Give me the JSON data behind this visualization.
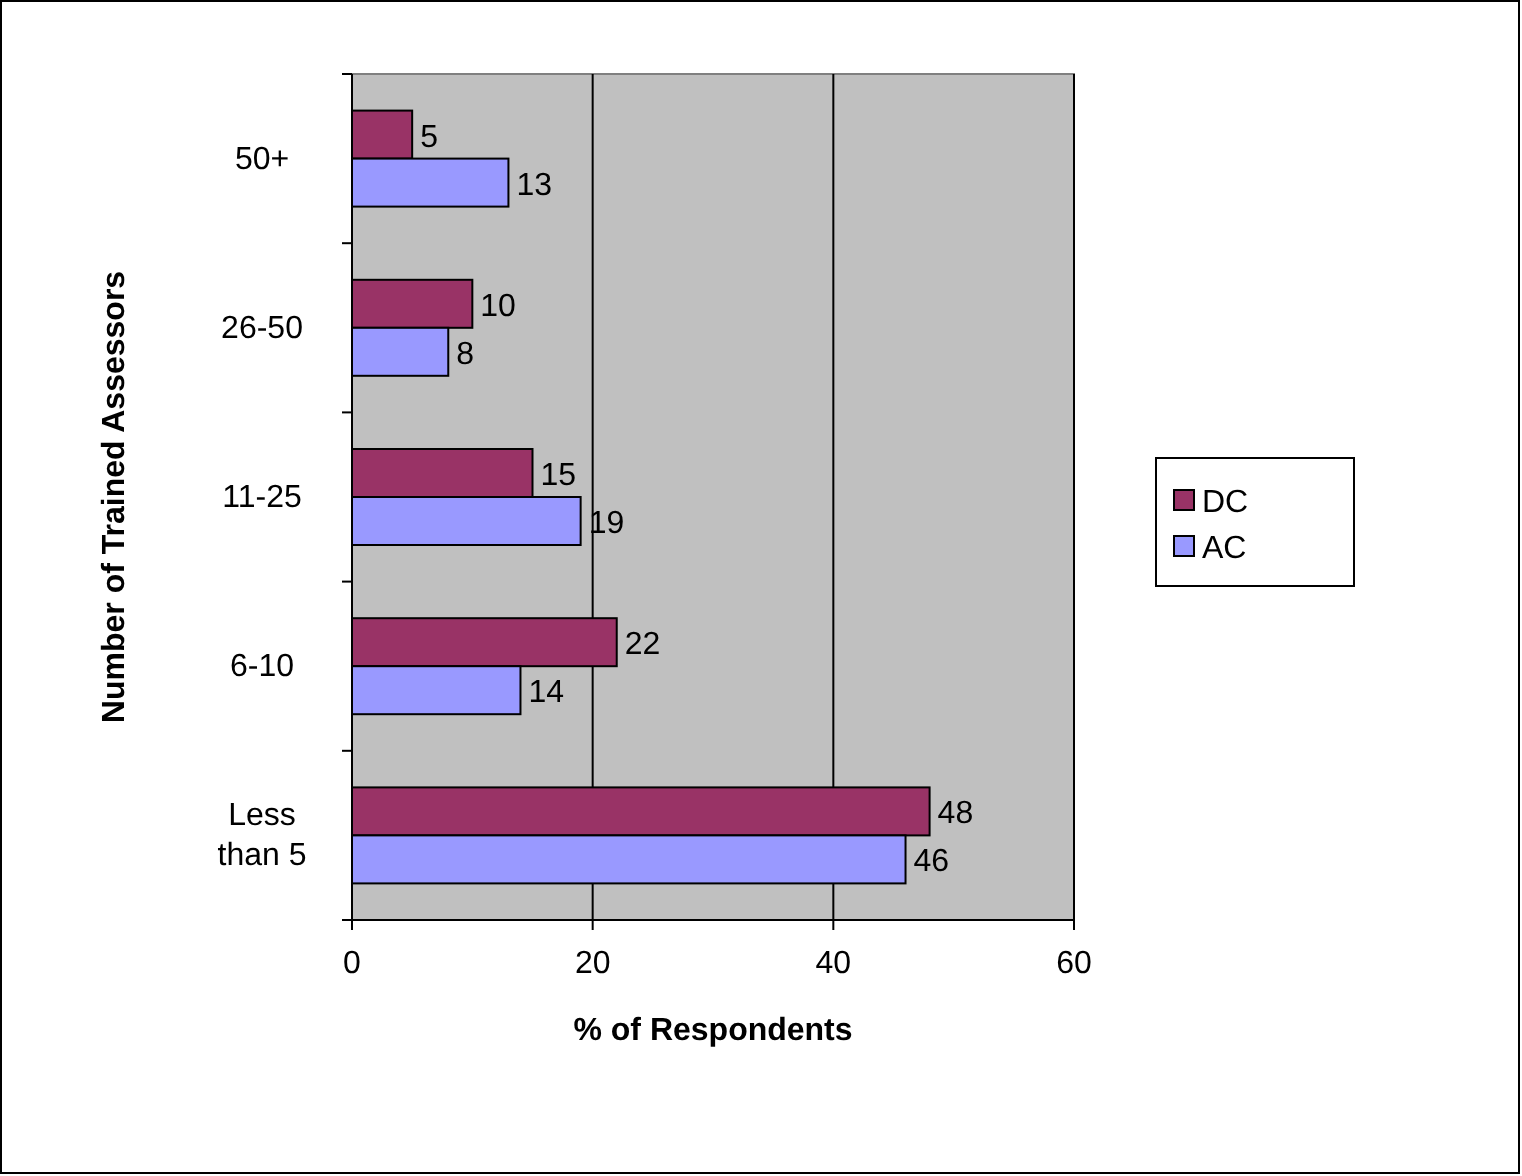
{
  "chart_data": {
    "type": "bar",
    "orientation": "horizontal",
    "xlabel": "% of Respondents",
    "ylabel": "Number of Trained Assessors",
    "categories": [
      "50+",
      "26-50",
      "11-25",
      "6-10",
      "Less than 5"
    ],
    "series": [
      {
        "name": "DC",
        "color": "#993366",
        "values": [
          5,
          10,
          15,
          22,
          48
        ]
      },
      {
        "name": "AC",
        "color": "#9999ff",
        "values": [
          13,
          8,
          19,
          14,
          46
        ]
      }
    ],
    "xlim": [
      0,
      60
    ],
    "xticks": [
      0,
      20,
      40,
      60
    ],
    "grid": "x",
    "legend": "right",
    "data_labels": true
  }
}
